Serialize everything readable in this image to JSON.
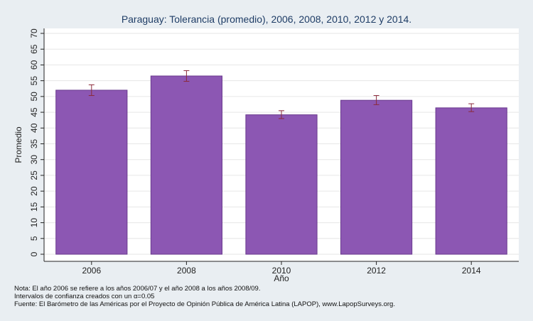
{
  "chart_data": {
    "type": "bar",
    "title": "Paraguay: Tolerancia (promedio), 2006, 2008, 2010, 2012 y 2014.",
    "xlabel": "Año",
    "ylabel": "Promedio",
    "categories": [
      "2006",
      "2008",
      "2010",
      "2012",
      "2014"
    ],
    "values": [
      52.0,
      56.5,
      44.2,
      48.8,
      46.4
    ],
    "error_bars": {
      "low": [
        50.3,
        54.8,
        43.0,
        47.4,
        45.2
      ],
      "high": [
        53.7,
        58.2,
        45.5,
        50.3,
        47.7
      ]
    },
    "ylim": [
      0,
      70
    ],
    "yticks": [
      0,
      5,
      10,
      15,
      20,
      25,
      30,
      35,
      40,
      45,
      50,
      55,
      60,
      65,
      70
    ],
    "grid": true,
    "colors": {
      "bar_fill": "#8c57b3",
      "bar_stroke": "#6a3a8e",
      "error_bar": "#8b2a3a",
      "plot_bg": "#ffffff",
      "figure_bg": "#e9eef2",
      "title": "#1f3d66"
    }
  },
  "notes": {
    "line1": "Nota: El año 2006 se refiere a los años 2006/07 y el año 2008 a los años 2008/09.",
    "line2": "Intervalos de confianza creados con un α=0.05",
    "line3": "Fuente: El Barómetro de las Américas por el Proyecto de Opinión Pública de América Latina (LAPOP), www.LapopSurveys.org."
  }
}
